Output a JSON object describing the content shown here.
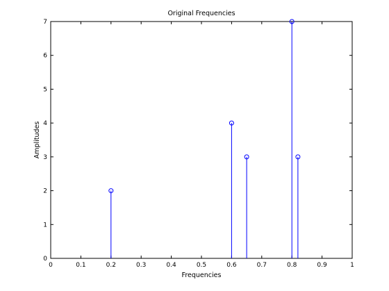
{
  "chart_data": {
    "type": "stem",
    "title": "Original Frequencies",
    "xlabel": "Frequencies",
    "ylabel": "Amplitudes",
    "xlim": [
      0,
      1
    ],
    "ylim": [
      0,
      7
    ],
    "xticks": [
      0,
      0.1,
      0.2,
      0.3,
      0.4,
      0.5,
      0.6,
      0.7,
      0.8,
      0.9,
      1
    ],
    "xtick_labels": [
      "0",
      "0.1",
      "0.2",
      "0.3",
      "0.4",
      "0.5",
      "0.6",
      "0.7",
      "0.8",
      "0.9",
      "1"
    ],
    "yticks": [
      0,
      1,
      2,
      3,
      4,
      5,
      6,
      7
    ],
    "ytick_labels": [
      "0",
      "1",
      "2",
      "3",
      "4",
      "5",
      "6",
      "7"
    ],
    "grid": false,
    "series": [
      {
        "x": [
          0.2,
          0.6,
          0.65,
          0.8,
          0.82
        ],
        "values": [
          2,
          4,
          3,
          7,
          3
        ],
        "color": "#0000ff",
        "marker": "circle"
      }
    ]
  }
}
